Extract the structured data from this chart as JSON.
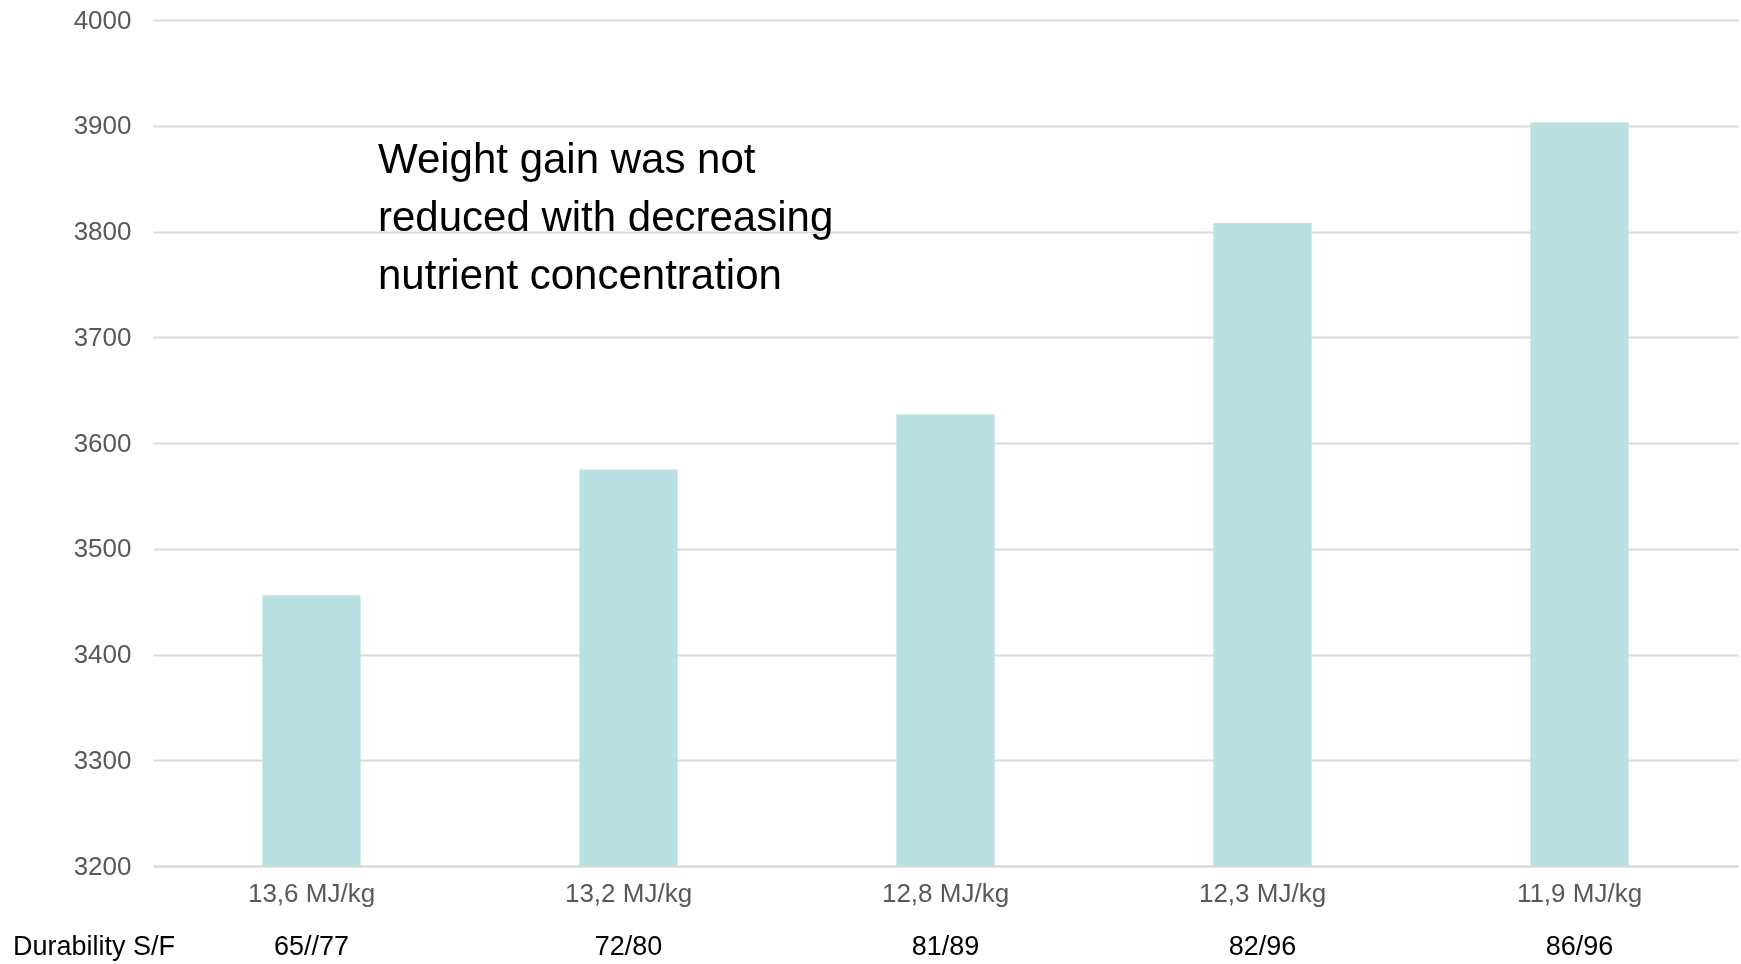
{
  "chart_data": {
    "type": "bar",
    "categories": [
      "13,6 MJ/kg",
      "13,2 MJ/kg",
      "12,8 MJ/kg",
      "12,3 MJ/kg",
      "11,9 MJ/kg"
    ],
    "values": [
      3456,
      3575,
      3627,
      3808,
      3903
    ],
    "color": "#b9e0e2",
    "ylim": [
      3200,
      4000
    ],
    "yticks": [
      3200,
      3300,
      3400,
      3500,
      3600,
      3700,
      3800,
      3900,
      4000
    ],
    "grid": "y",
    "annotations": [
      "Weight gain was not reduced with decreasing nutrient concentration",
      "Durability S/F",
      "65//77",
      "72/80",
      "81/89",
      "82/96",
      "86/96"
    ]
  }
}
